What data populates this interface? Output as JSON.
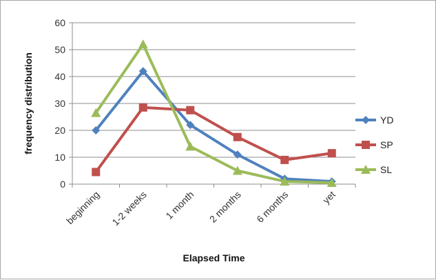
{
  "chart_data": {
    "type": "line",
    "categories": [
      "beginning",
      "1-2 weeks",
      "1 month",
      "2 months",
      "6 months",
      "yet"
    ],
    "series": [
      {
        "name": "YD",
        "values": [
          20,
          42,
          22,
          11,
          2,
          1
        ],
        "color": "#4f81bd",
        "marker": "diamond"
      },
      {
        "name": "SP",
        "values": [
          4.5,
          28.5,
          27.5,
          17.5,
          9,
          11.5
        ],
        "color": "#c0504d",
        "marker": "square"
      },
      {
        "name": "SL",
        "values": [
          26.5,
          52,
          14,
          5,
          1,
          0.5
        ],
        "color": "#9bbb59",
        "marker": "triangle"
      }
    ],
    "title": "",
    "xlabel": "Elapsed Time",
    "ylabel": "frequency distribution",
    "ylim": [
      0,
      60
    ],
    "yticks": [
      0,
      10,
      20,
      30,
      40,
      50,
      60
    ],
    "grid": true,
    "legend": "right"
  }
}
